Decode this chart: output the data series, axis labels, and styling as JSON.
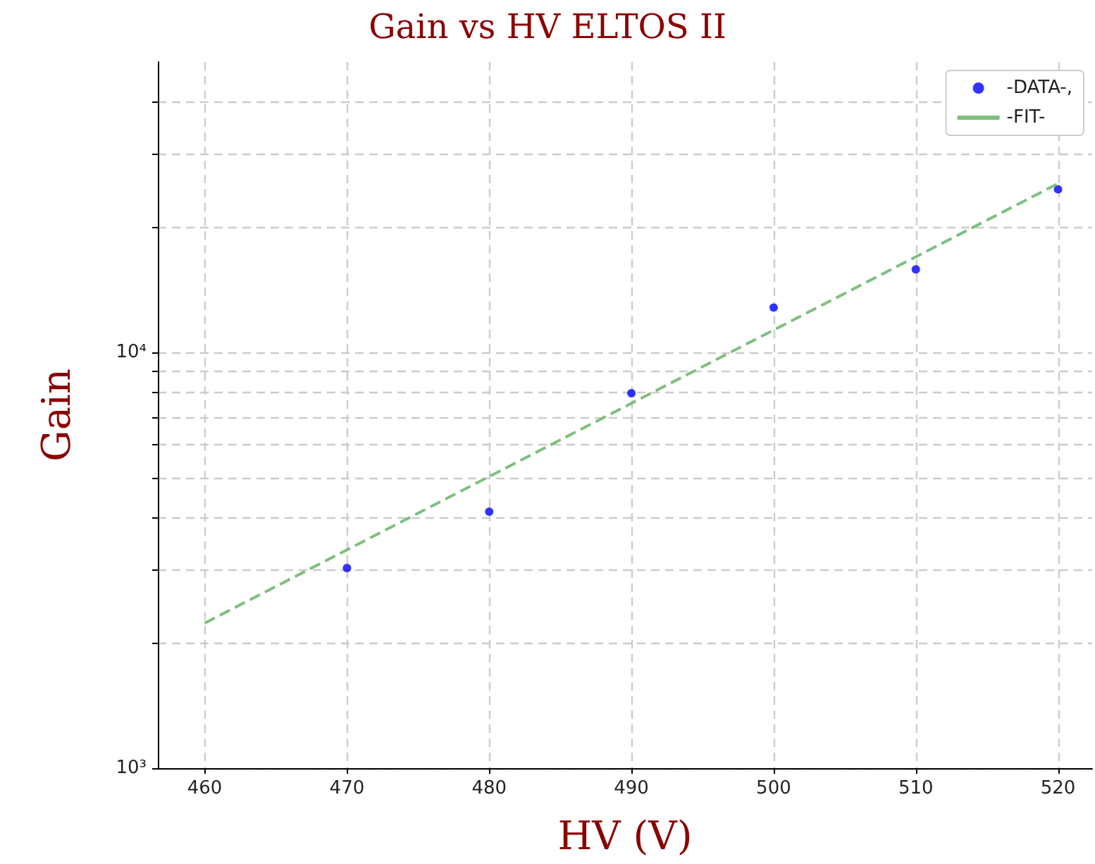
{
  "chart_data": {
    "type": "scatter",
    "title": "Gain vs HV ELTOS II",
    "xlabel": "HV (V)",
    "ylabel": "Gain",
    "log": "y",
    "grid": true,
    "legend": "top right",
    "marker": "circle",
    "xlim": [
      456.7,
      522.4
    ],
    "xticks": [
      460,
      470,
      480,
      490,
      500,
      510,
      520
    ],
    "ylim": [
      1000,
      50000
    ],
    "yticks": [
      {
        "value": 1000,
        "label": "10³"
      },
      {
        "value": 2000,
        "label": null
      },
      {
        "value": 3000,
        "label": null
      },
      {
        "value": 4000,
        "label": null
      },
      {
        "value": 5000,
        "label": null
      },
      {
        "value": 6000,
        "label": null
      },
      {
        "value": 7000,
        "label": null
      },
      {
        "value": 8000,
        "label": null
      },
      {
        "value": 9000,
        "label": null
      },
      {
        "value": 10000,
        "label": "10⁴"
      },
      {
        "value": 20000,
        "label": null
      },
      {
        "value": 30000,
        "label": null
      },
      {
        "value": 40000,
        "label": null
      }
    ],
    "series": [
      {
        "name": "-DATA-,",
        "type": "scatter",
        "color": "#0000ff",
        "x": [
          470,
          480,
          490,
          500,
          510,
          520
        ],
        "values": [
          3030,
          4140,
          7980,
          12830,
          15850,
          24700
        ]
      },
      {
        "name": "-FIT-",
        "type": "line",
        "color": "#7fbf7f",
        "line_style": "dashed",
        "marker": "none",
        "x": [
          460,
          520
        ],
        "values": [
          2234,
          25500
        ]
      }
    ]
  }
}
